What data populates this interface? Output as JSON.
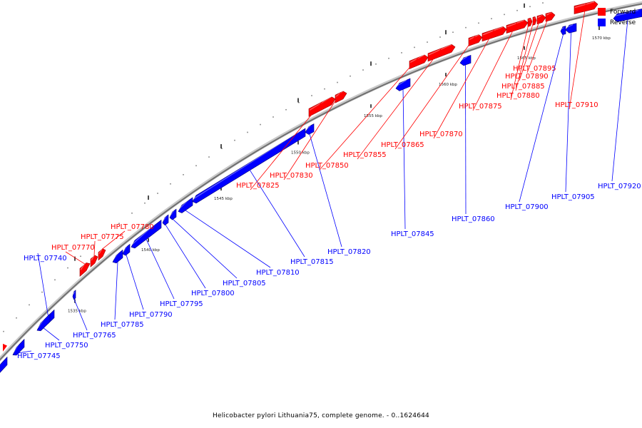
{
  "title": "Helicobacter pylori Lithuania75, complete genome. - 0..1624644",
  "legend": {
    "forward": {
      "label": "Forward",
      "color": "#ff0000"
    },
    "reverse": {
      "label": "Reverse",
      "color": "#0000ff"
    }
  },
  "ticks": [
    "1535 kbp",
    "1540 kbp",
    "1545 kbp",
    "1550 kbp",
    "1555 kbp",
    "1560 kbp",
    "1565 kbp",
    "1570 kbp"
  ],
  "genes": [
    {
      "name": "HPLT_07740",
      "strand": "reverse"
    },
    {
      "name": "HPLT_07745",
      "strand": "reverse"
    },
    {
      "name": "HPLT_07750",
      "strand": "reverse"
    },
    {
      "name": "HPLT_07765",
      "strand": "reverse"
    },
    {
      "name": "HPLT_07770",
      "strand": "forward"
    },
    {
      "name": "HPLT_07775",
      "strand": "forward"
    },
    {
      "name": "HPLT_07780",
      "strand": "forward"
    },
    {
      "name": "HPLT_07785",
      "strand": "reverse"
    },
    {
      "name": "HPLT_07790",
      "strand": "reverse"
    },
    {
      "name": "HPLT_07795",
      "strand": "reverse"
    },
    {
      "name": "HPLT_07800",
      "strand": "reverse"
    },
    {
      "name": "HPLT_07805",
      "strand": "reverse"
    },
    {
      "name": "HPLT_07810",
      "strand": "reverse"
    },
    {
      "name": "HPLT_07815",
      "strand": "reverse"
    },
    {
      "name": "HPLT_07820",
      "strand": "reverse"
    },
    {
      "name": "HPLT_07825",
      "strand": "forward"
    },
    {
      "name": "HPLT_07830",
      "strand": "forward"
    },
    {
      "name": "HPLT_07845",
      "strand": "reverse"
    },
    {
      "name": "HPLT_07850",
      "strand": "forward"
    },
    {
      "name": "HPLT_07855",
      "strand": "forward"
    },
    {
      "name": "HPLT_07860",
      "strand": "reverse"
    },
    {
      "name": "HPLT_07865",
      "strand": "forward"
    },
    {
      "name": "HPLT_07870",
      "strand": "forward"
    },
    {
      "name": "HPLT_07875",
      "strand": "forward"
    },
    {
      "name": "HPLT_07880",
      "strand": "forward"
    },
    {
      "name": "HPLT_07885",
      "strand": "forward"
    },
    {
      "name": "HPLT_07890",
      "strand": "forward"
    },
    {
      "name": "HPLT_07895",
      "strand": "forward"
    },
    {
      "name": "HPLT_07900",
      "strand": "reverse"
    },
    {
      "name": "HPLT_07905",
      "strand": "reverse"
    },
    {
      "name": "HPLT_07910",
      "strand": "forward"
    },
    {
      "name": "HPLT_07920",
      "strand": "reverse"
    }
  ]
}
